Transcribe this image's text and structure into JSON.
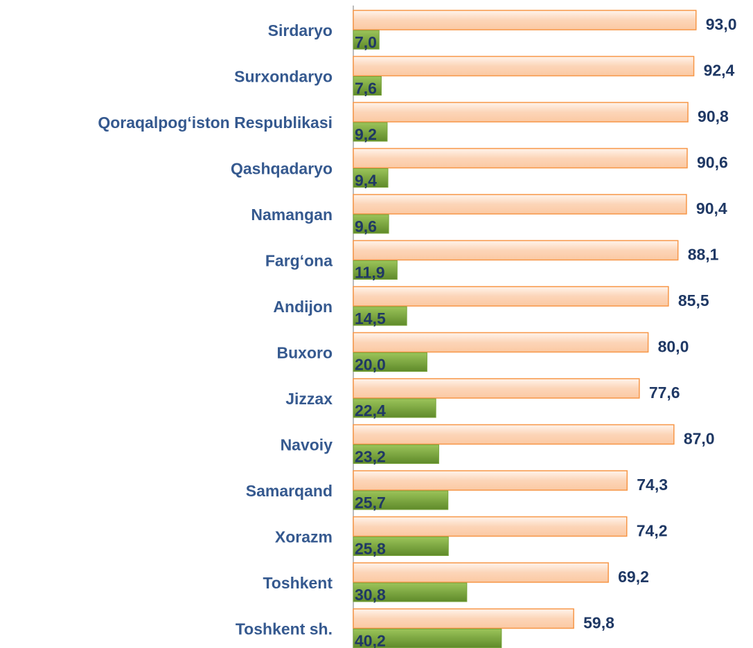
{
  "chart_data": {
    "type": "barh",
    "categories": [
      "Sirdaryo",
      "Surxondaryo",
      "Qoraqalpog‘iston Respublikasi",
      "Qashqadaryo",
      "Namangan",
      "Farg‘ona",
      "Andijon",
      "Buxoro",
      "Jizzax",
      "Navoiy",
      "Samarqand",
      "Xorazm",
      "Toshkent",
      "Toshkent sh."
    ],
    "series": [
      {
        "color": "#f79646",
        "values": [
          93.0,
          92.4,
          90.8,
          90.6,
          90.4,
          88.1,
          85.5,
          80.0,
          77.6,
          87.0,
          74.3,
          74.2,
          69.2,
          59.8
        ],
        "value_labels": [
          "93,0",
          "92,4",
          "90,8",
          "90,6",
          "90,4",
          "88,1",
          "85,5",
          "80,0",
          "77,6",
          "87,0",
          "74,3",
          "74,2",
          "69,2",
          "59,8"
        ]
      },
      {
        "color": "#77a33a",
        "values": [
          7.0,
          7.6,
          9.2,
          9.4,
          9.6,
          11.9,
          14.5,
          20.0,
          22.4,
          23.2,
          25.7,
          25.8,
          30.8,
          40.2
        ],
        "value_labels": [
          "7,0",
          "7,6",
          "9,2",
          "9,4",
          "9,6",
          "11,9",
          "14,5",
          "20,0",
          "22,4",
          "23,2",
          "25,7",
          "25,8",
          "30,8",
          "40,2"
        ]
      }
    ],
    "xlim": [
      0,
      100
    ]
  }
}
